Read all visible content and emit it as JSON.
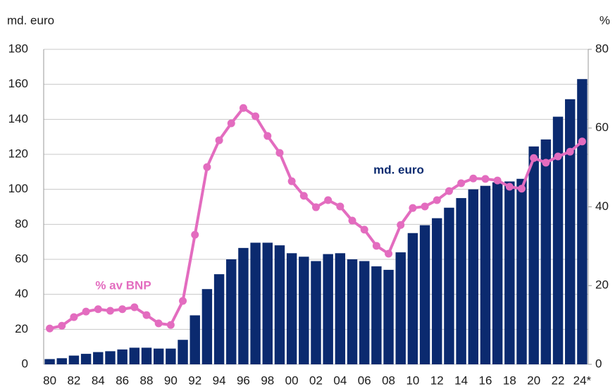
{
  "chart_data": {
    "type": "bar-line",
    "y_label": "md. euro",
    "y2_label": "%",
    "categories": [
      "80",
      null,
      "82",
      null,
      "84",
      null,
      "86",
      null,
      "88",
      null,
      "90",
      null,
      "92",
      null,
      "94",
      null,
      "96",
      null,
      "98",
      null,
      "00",
      null,
      "02",
      null,
      "04",
      null,
      "06",
      null,
      "08",
      null,
      "10",
      null,
      "12",
      null,
      "14",
      null,
      "16",
      null,
      "18",
      null,
      "20",
      null,
      "22",
      null,
      "24*"
    ],
    "series": [
      {
        "name": "md. euro",
        "type": "bar",
        "color": "#0b2a6f",
        "values": [
          3,
          3.5,
          5,
          6,
          7,
          7.5,
          8.5,
          9.5,
          9.5,
          9,
          9,
          14,
          28,
          43,
          51.5,
          60,
          66.5,
          69.5,
          69.5,
          68,
          63.5,
          61.5,
          59,
          63,
          63.5,
          60,
          59,
          56,
          54,
          64,
          75,
          79.5,
          83.5,
          89.5,
          95,
          100,
          102,
          104,
          104.5,
          106,
          124.5,
          128.5,
          141.5,
          151.5,
          163
        ]
      },
      {
        "name": "% av BNP",
        "type": "line",
        "axis": "y2",
        "color": "#e36cbf",
        "values": [
          9.1,
          9.8,
          12,
          13.4,
          14,
          13.6,
          14,
          14.5,
          12.5,
          10.4,
          10,
          16.1,
          32.9,
          50.1,
          56.9,
          61.2,
          65.1,
          63,
          58,
          53.7,
          46.5,
          42.8,
          39.9,
          41.7,
          40.1,
          36.5,
          34.2,
          30.1,
          28.1,
          35.4,
          39.7,
          40.1,
          41.7,
          44,
          46,
          47.2,
          47.1,
          46.7,
          45.1,
          44.6,
          52.4,
          51.2,
          52.8,
          54,
          56.6
        ]
      }
    ],
    "ylim": [
      0,
      180
    ],
    "yticks": [
      0,
      20,
      40,
      60,
      80,
      100,
      120,
      140,
      160,
      180
    ],
    "y2lim": [
      0,
      80
    ],
    "y2ticks": [
      0,
      20,
      40,
      60,
      80
    ],
    "grid": true
  }
}
